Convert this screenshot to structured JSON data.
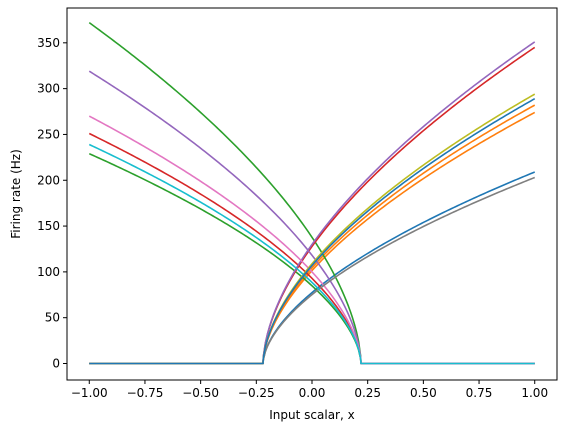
{
  "chart_data": {
    "type": "line",
    "xlabel": "Input scalar, x",
    "ylabel": "Firing rate (Hz)",
    "xlim": [
      -1.1,
      1.1
    ],
    "ylim": [
      -18,
      388
    ],
    "xticks": [
      -1.0,
      -0.75,
      -0.5,
      -0.25,
      0.0,
      0.25,
      0.5,
      0.75,
      1.0
    ],
    "xtick_labels": [
      "−1.00",
      "−0.75",
      "−0.50",
      "−0.25",
      "0.00",
      "0.25",
      "0.50",
      "0.75",
      "1.00"
    ],
    "yticks": [
      0,
      50,
      100,
      150,
      200,
      250,
      300,
      350
    ],
    "ytick_labels": [
      "0",
      "50",
      "100",
      "150",
      "200",
      "250",
      "300",
      "350"
    ],
    "grid": false,
    "legend": "none",
    "series": [
      {
        "color": "#1f77b4",
        "direction": 1,
        "threshold": -0.22,
        "value_at_end": 209
      },
      {
        "color": "#ff7f0e",
        "direction": 1,
        "threshold": -0.22,
        "value_at_end": 274
      },
      {
        "color": "#ff7f0e",
        "direction": 1,
        "threshold": -0.22,
        "value_at_end": 282
      },
      {
        "color": "#2ca02c",
        "direction": -1,
        "threshold": 0.22,
        "value_at_end": 229
      },
      {
        "color": "#2ca02c",
        "direction": -1,
        "threshold": 0.22,
        "value_at_end": 372
      },
      {
        "color": "#d62728",
        "direction": -1,
        "threshold": 0.22,
        "value_at_end": 251
      },
      {
        "color": "#d62728",
        "direction": 1,
        "threshold": -0.22,
        "value_at_end": 345
      },
      {
        "color": "#9467bd",
        "direction": -1,
        "threshold": 0.22,
        "value_at_end": 319
      },
      {
        "color": "#9467bd",
        "direction": 1,
        "threshold": -0.22,
        "value_at_end": 351
      },
      {
        "color": "#e377c2",
        "direction": -1,
        "threshold": 0.22,
        "value_at_end": 270
      },
      {
        "color": "#7f7f7f",
        "direction": 1,
        "threshold": -0.22,
        "value_at_end": 203
      },
      {
        "color": "#bcbd22",
        "direction": 1,
        "threshold": -0.22,
        "value_at_end": 294
      },
      {
        "color": "#17becf",
        "direction": -1,
        "threshold": 0.22,
        "value_at_end": 239
      },
      {
        "color": "#1f77b4",
        "direction": 1,
        "threshold": -0.22,
        "value_at_end": 289
      }
    ]
  }
}
